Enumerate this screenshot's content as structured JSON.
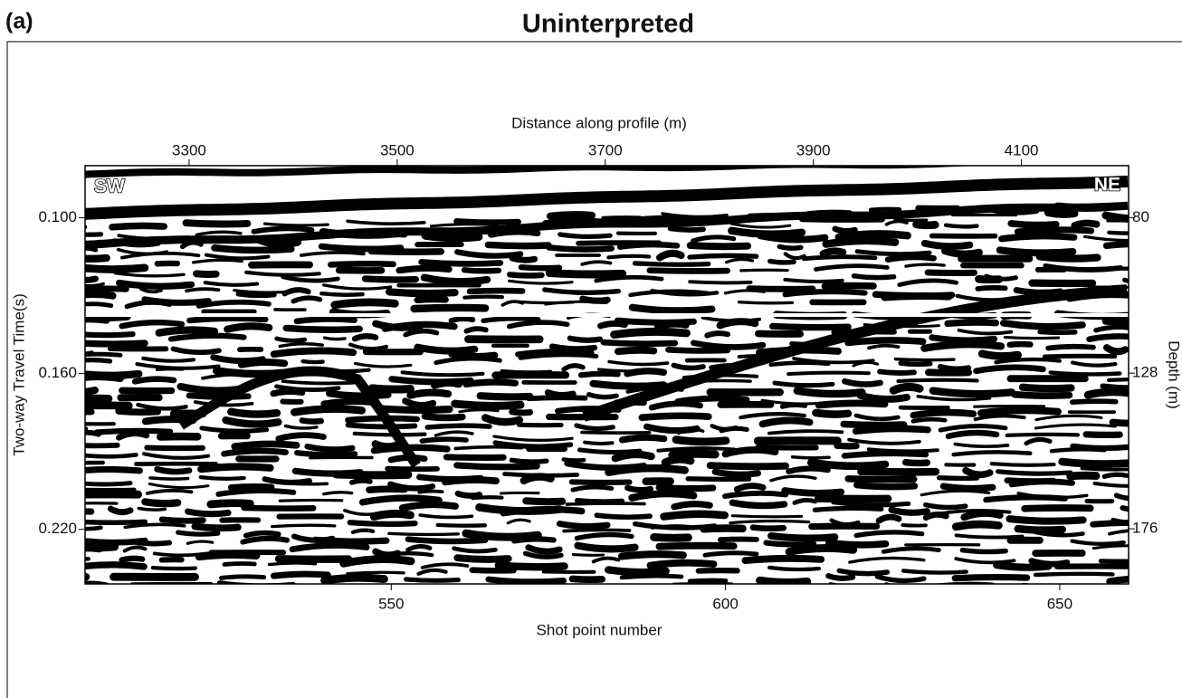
{
  "panel_label": "(a)",
  "chart_data": {
    "type": "seismic-section",
    "title": "Uninterpreted",
    "top_x_label": "Distance along profile (m)",
    "top_xlim": [
      3200,
      4203
    ],
    "top_xticks": [
      3300,
      3500,
      3700,
      3900,
      4100
    ],
    "x_label": "Shot point number",
    "xlim": [
      504.2,
      660.3
    ],
    "xticks": [
      550,
      600,
      650
    ],
    "y_label": "Two-way Travel Time(s)",
    "ylim": [
      0.08,
      0.241
    ],
    "yticks": [
      {
        "value": 0.1,
        "label": "0.100"
      },
      {
        "value": 0.16,
        "label": "0.160"
      },
      {
        "value": 0.22,
        "label": "0.220"
      }
    ],
    "y_inverted": true,
    "y2_label": "Depth (m)",
    "y2lim": [
      64,
      193
    ],
    "y2ticks": [
      80,
      128,
      176
    ],
    "left_annotation": "SW",
    "right_annotation": "NE"
  }
}
